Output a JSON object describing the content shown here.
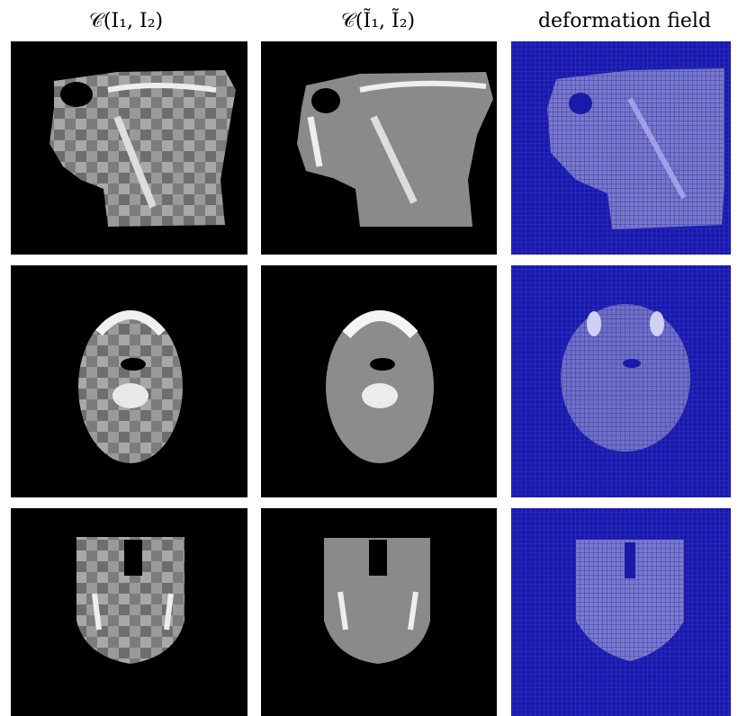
{
  "columns": [
    {
      "header": "𝒞(I₁, I₂)"
    },
    {
      "header": "𝒞(Ĩ₁, Ĩ₂)"
    },
    {
      "header": "deformation field"
    }
  ]
}
